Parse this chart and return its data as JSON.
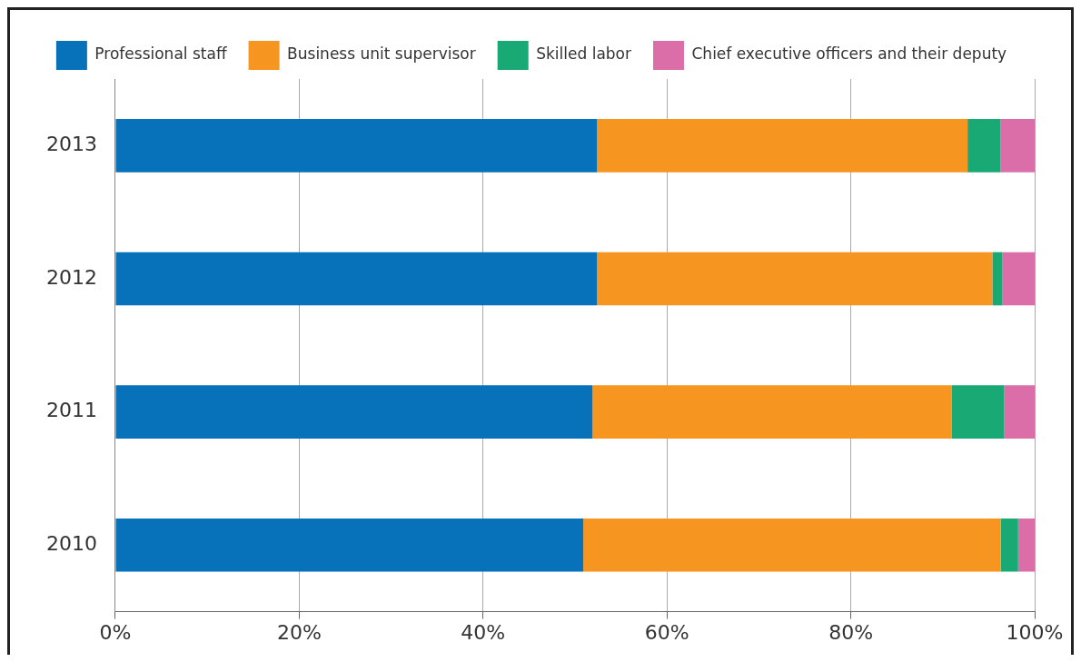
{
  "chart_data": {
    "type": "bar",
    "orientation": "horizontal",
    "stacked": true,
    "categories": [
      "2013",
      "2012",
      "2011",
      "2010"
    ],
    "series": [
      {
        "name": "Professional staff",
        "color": "#0772b9",
        "values": [
          52.4,
          52.4,
          51.9,
          50.9
        ]
      },
      {
        "name": "Business unit supervisor",
        "color": "#f79521",
        "values": [
          40.3,
          43.0,
          39.1,
          45.4
        ]
      },
      {
        "name": "Skilled labor",
        "color": "#19a974",
        "values": [
          3.6,
          1.1,
          5.7,
          1.9
        ]
      },
      {
        "name": "Chief executive officers and their deputy",
        "color": "#db6ea9",
        "values": [
          3.7,
          3.5,
          3.3,
          1.8
        ]
      }
    ],
    "xlim": [
      0,
      100
    ],
    "xticks": [
      {
        "value": 0,
        "label": "0%"
      },
      {
        "value": 20,
        "label": "20%"
      },
      {
        "value": 40,
        "label": "40%"
      },
      {
        "value": 60,
        "label": "60%"
      },
      {
        "value": 80,
        "label": "80%"
      },
      {
        "value": 100,
        "label": "100%"
      }
    ],
    "grid": "x",
    "legend": "top"
  }
}
